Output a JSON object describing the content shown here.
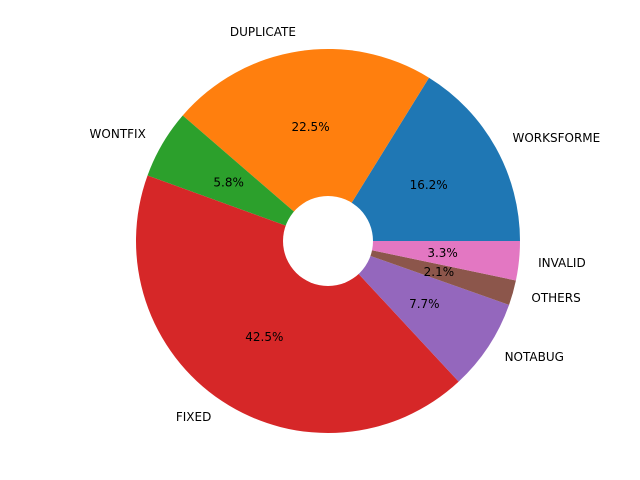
{
  "chart_data": {
    "type": "pie",
    "donut": true,
    "start_angle_deg": 0,
    "direction": "counterclockwise",
    "slices": [
      {
        "label": "WORKSFORME",
        "value": 16.2,
        "pct_label": "16.2%",
        "color": "#1f77b4"
      },
      {
        "label": "DUPLICATE",
        "value": 22.5,
        "pct_label": "22.5%",
        "color": "#ff7f0e"
      },
      {
        "label": "WONTFIX",
        "value": 5.8,
        "pct_label": "5.8%",
        "color": "#2ca02c"
      },
      {
        "label": "FIXED",
        "value": 42.5,
        "pct_label": "42.5%",
        "color": "#d62728"
      },
      {
        "label": "NOTABUG",
        "value": 7.7,
        "pct_label": "7.7%",
        "color": "#9467bd"
      },
      {
        "label": "OTHERS",
        "value": 2.1,
        "pct_label": "2.1%",
        "color": "#8c564b"
      },
      {
        "label": "INVALID",
        "value": 3.3,
        "pct_label": "3.3%",
        "color": "#e377c2"
      }
    ]
  }
}
